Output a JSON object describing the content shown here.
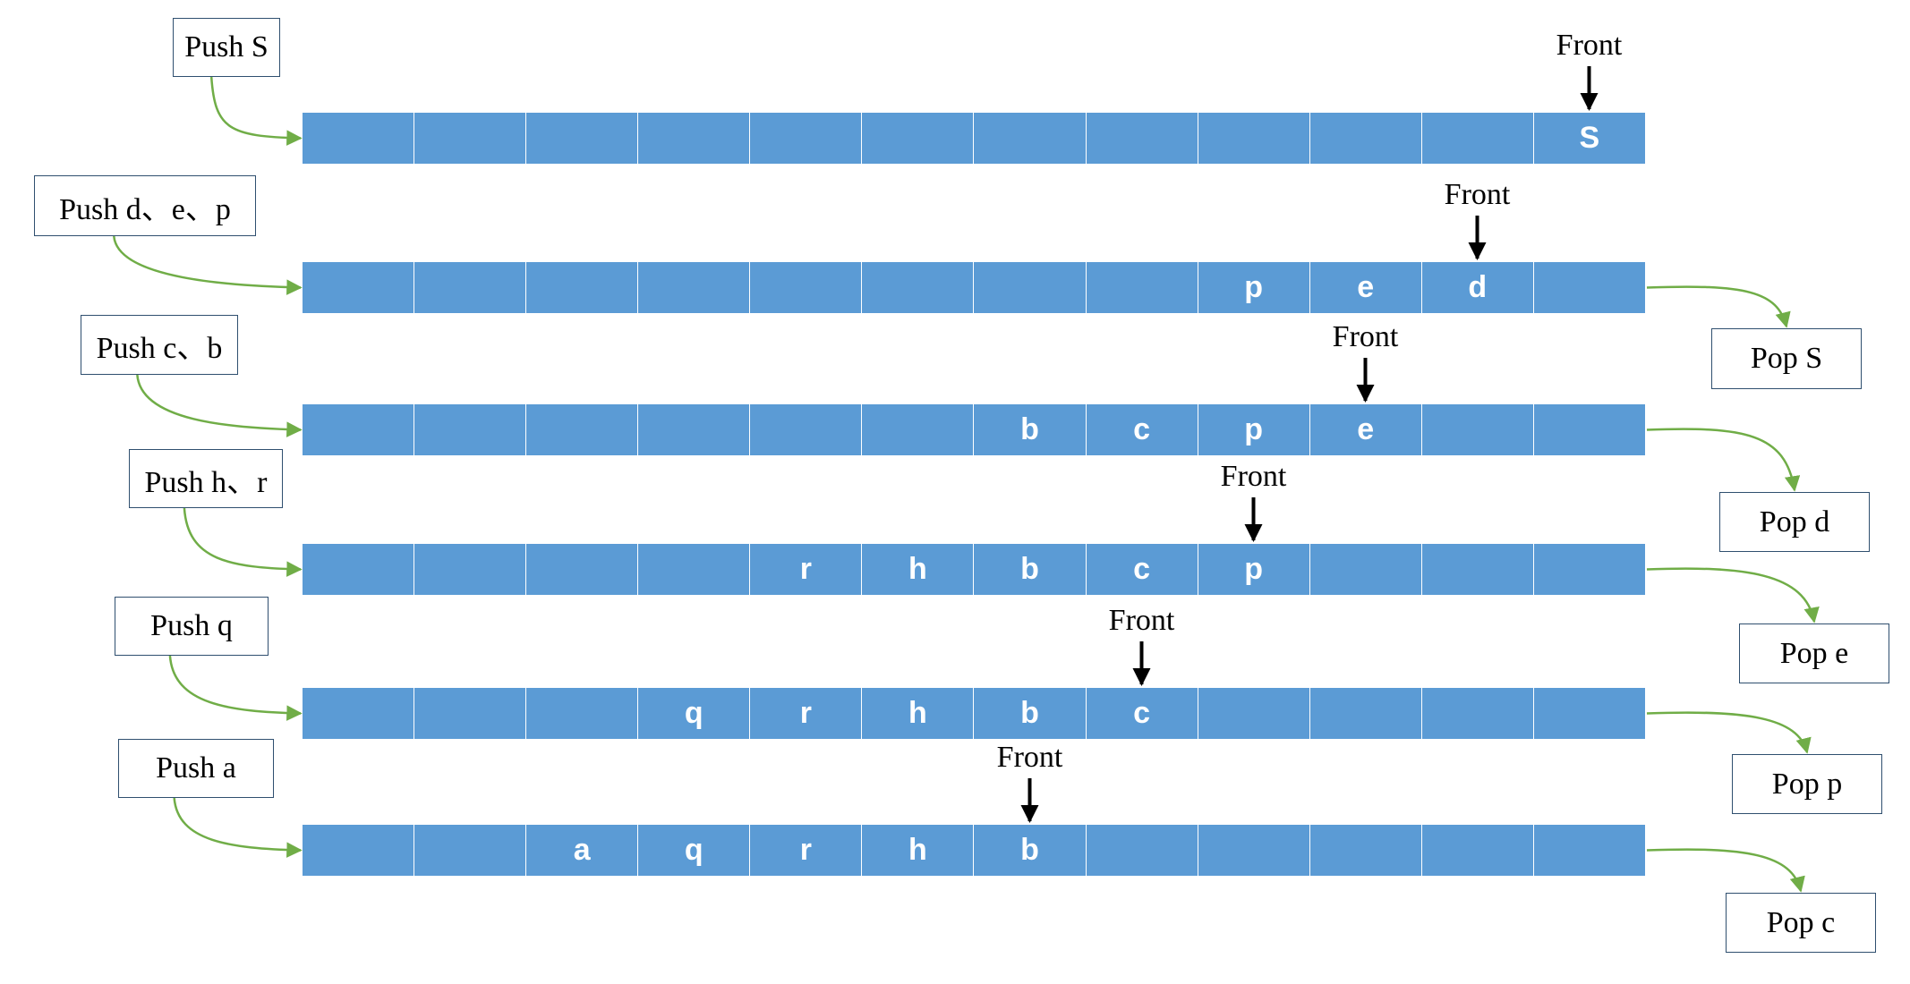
{
  "colors": {
    "cell_fill": "#5b9bd5",
    "cell_text": "#ffffff",
    "connector": "#70ad47",
    "front_arrow": "#000000"
  },
  "front_label": "Front",
  "steps": [
    {
      "push_label": "Push S",
      "pop_label": "",
      "cells": [
        "",
        "",
        "",
        "",
        "",
        "",
        "",
        "",
        "",
        "",
        "",
        "S"
      ],
      "front_index": 11
    },
    {
      "push_label": "Push d、e、p",
      "pop_label": "Pop S",
      "cells": [
        "",
        "",
        "",
        "",
        "",
        "",
        "",
        "",
        "p",
        "e",
        "d",
        ""
      ],
      "front_index": 10
    },
    {
      "push_label": "Push c、b",
      "pop_label": "Pop d",
      "cells": [
        "",
        "",
        "",
        "",
        "",
        "",
        "b",
        "c",
        "p",
        "e",
        "",
        ""
      ],
      "front_index": 9
    },
    {
      "push_label": "Push h、r",
      "pop_label": "Pop e",
      "cells": [
        "",
        "",
        "",
        "",
        "r",
        "h",
        "b",
        "c",
        "p",
        "",
        "",
        ""
      ],
      "front_index": 8
    },
    {
      "push_label": "Push q",
      "pop_label": "Pop p",
      "cells": [
        "",
        "",
        "",
        "q",
        "r",
        "h",
        "b",
        "c",
        "",
        "",
        "",
        ""
      ],
      "front_index": 7
    },
    {
      "push_label": "Push a",
      "pop_label": "Pop c",
      "cells": [
        "",
        "",
        "a",
        "q",
        "r",
        "h",
        "b",
        "",
        "",
        "",
        "",
        ""
      ],
      "front_index": 6
    }
  ]
}
